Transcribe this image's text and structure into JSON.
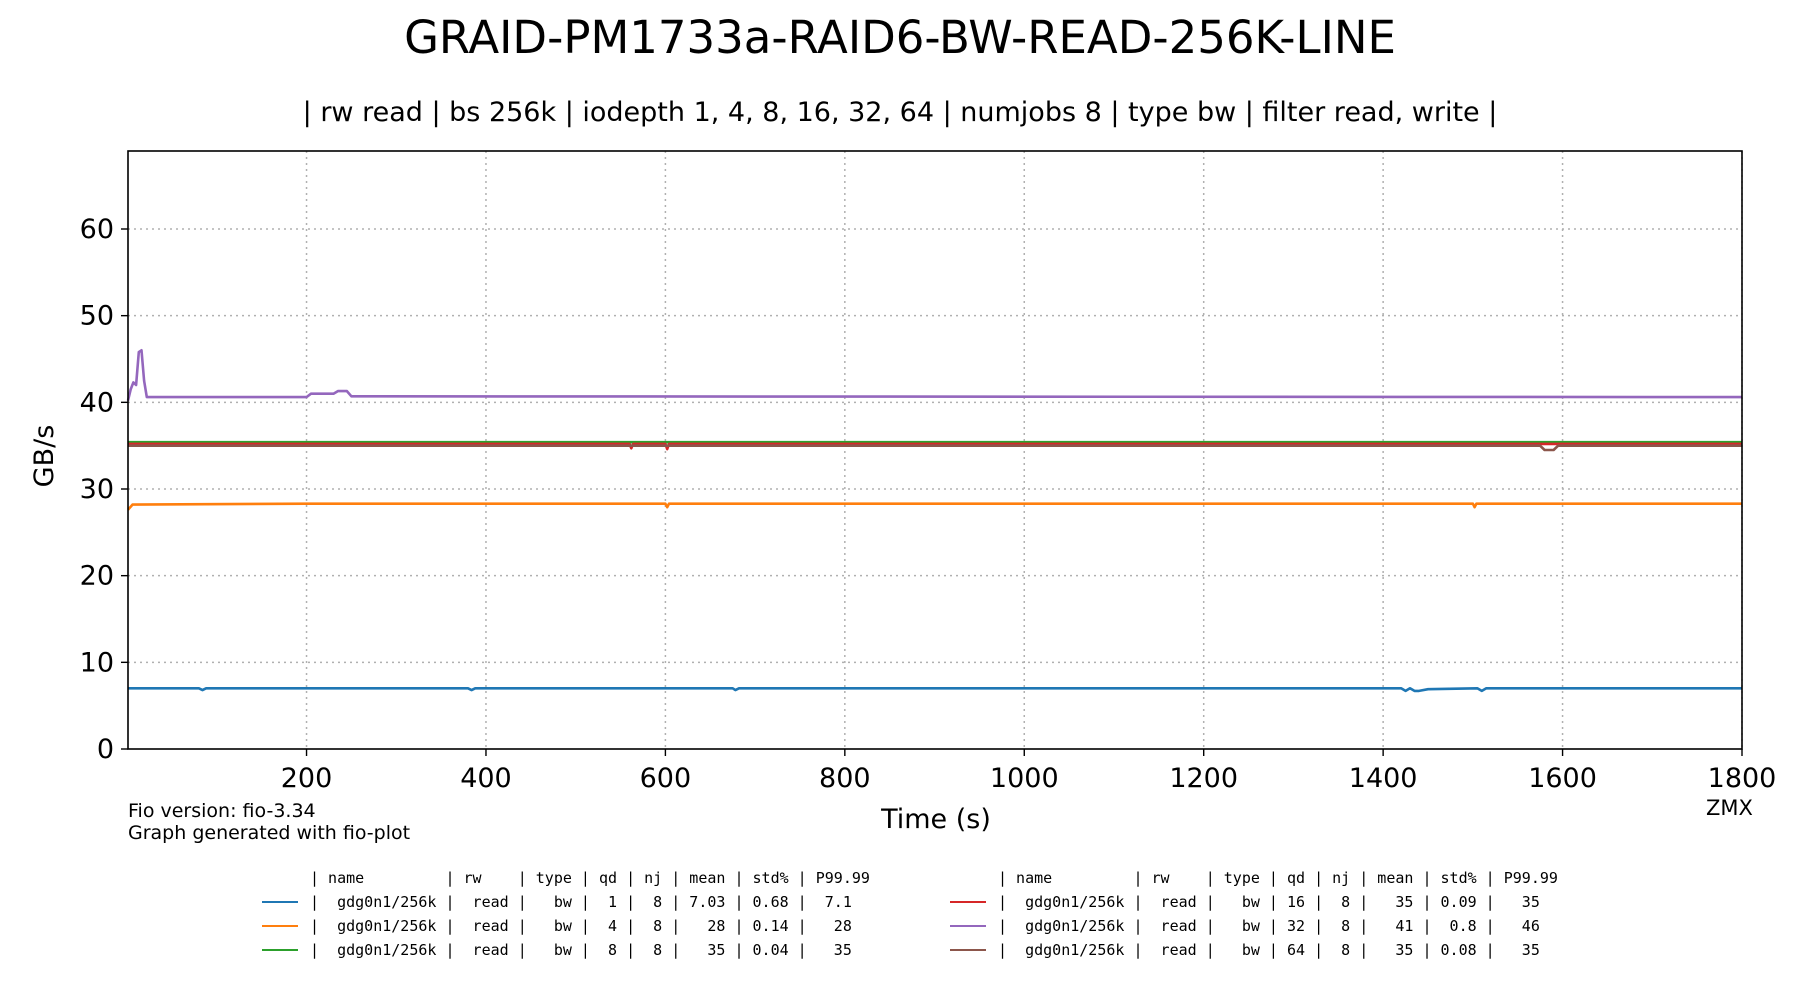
{
  "chart_data": {
    "type": "line",
    "title": "GRAID-PM1733a-RAID6-BW-READ-256K-LINE",
    "subtitle": "| rw read | bs 256k | iodepth 1, 4, 8, 16, 32, 64 | numjobs 8 | type bw | filter read, write |",
    "xlabel": "Time (s)",
    "ylabel": "GB/s",
    "xlim": [
      1,
      1800
    ],
    "ylim": [
      0,
      69
    ],
    "xticks": [
      200,
      400,
      600,
      800,
      1000,
      1200,
      1400,
      1600,
      1800
    ],
    "yticks": [
      0,
      10,
      20,
      30,
      40,
      50,
      60
    ],
    "grid": true,
    "series": [
      {
        "name": "gdg0n1/256k",
        "qd": 1,
        "color": "#1f77b4",
        "base": 7.03,
        "points": [
          [
            1,
            7.0
          ],
          [
            80,
            7.0
          ],
          [
            84,
            6.8
          ],
          [
            88,
            7.0
          ],
          [
            380,
            7.0
          ],
          [
            384,
            6.8
          ],
          [
            388,
            7.0
          ],
          [
            640,
            7.0
          ],
          [
            675,
            7.0
          ],
          [
            678,
            6.8
          ],
          [
            682,
            7.0
          ],
          [
            1420,
            7.0
          ],
          [
            1425,
            6.7
          ],
          [
            1430,
            7.0
          ],
          [
            1435,
            6.7
          ],
          [
            1440,
            6.7
          ],
          [
            1450,
            6.9
          ],
          [
            1505,
            7.0
          ],
          [
            1510,
            6.7
          ],
          [
            1515,
            7.0
          ],
          [
            1800,
            7.0
          ]
        ]
      },
      {
        "name": "gdg0n1/256k",
        "qd": 4,
        "color": "#ff7f0e",
        "base": 28.3,
        "points": [
          [
            1,
            27.6
          ],
          [
            6,
            28.2
          ],
          [
            200,
            28.3
          ],
          [
            600,
            28.3
          ],
          [
            602,
            27.9
          ],
          [
            604,
            28.3
          ],
          [
            1500,
            28.3
          ],
          [
            1502,
            27.9
          ],
          [
            1504,
            28.3
          ],
          [
            1800,
            28.3
          ]
        ]
      },
      {
        "name": "gdg0n1/256k",
        "qd": 8,
        "color": "#2ca02c",
        "base": 35.4,
        "points": [
          [
            1,
            35.4
          ],
          [
            1800,
            35.4
          ]
        ]
      },
      {
        "name": "gdg0n1/256k",
        "qd": 16,
        "color": "#d62728",
        "base": 35.2,
        "points": [
          [
            1,
            35.2
          ],
          [
            560,
            35.2
          ],
          [
            562,
            34.7
          ],
          [
            564,
            35.2
          ],
          [
            600,
            35.2
          ],
          [
            602,
            34.6
          ],
          [
            604,
            35.2
          ],
          [
            1800,
            35.2
          ]
        ]
      },
      {
        "name": "gdg0n1/256k",
        "qd": 32,
        "color": "#9467bd",
        "base": 40.6,
        "points": [
          [
            1,
            40.2
          ],
          [
            4,
            41.5
          ],
          [
            7,
            42.3
          ],
          [
            10,
            42.0
          ],
          [
            13,
            45.8
          ],
          [
            16,
            46.0
          ],
          [
            19,
            42.5
          ],
          [
            22,
            40.6
          ],
          [
            200,
            40.6
          ],
          [
            205,
            41.0
          ],
          [
            230,
            41.0
          ],
          [
            235,
            41.3
          ],
          [
            245,
            41.3
          ],
          [
            250,
            40.7
          ],
          [
            1800,
            40.6
          ]
        ]
      },
      {
        "name": "gdg0n1/256k",
        "qd": 64,
        "color": "#8c564b",
        "base": 35.0,
        "points": [
          [
            1,
            35.0
          ],
          [
            1575,
            35.0
          ],
          [
            1580,
            34.5
          ],
          [
            1590,
            34.5
          ],
          [
            1595,
            35.0
          ],
          [
            1800,
            35.0
          ]
        ]
      }
    ]
  },
  "footer": {
    "fio_version": "Fio version: fio-3.34",
    "generated": "Graph generated with fio-plot",
    "tag": "ZMX"
  },
  "legend": {
    "header": "| name         | rw    | type | qd | nj | mean | std% | P99.99",
    "left": [
      {
        "color": "#1f77b4",
        "text": "|  gdg0n1/256k |  read |   bw |  1 |  8 | 7.03 | 0.68 |  7.1"
      },
      {
        "color": "#ff7f0e",
        "text": "|  gdg0n1/256k |  read |   bw |  4 |  8 |   28 | 0.14 |   28"
      },
      {
        "color": "#2ca02c",
        "text": "|  gdg0n1/256k |  read |   bw |  8 |  8 |   35 | 0.04 |   35"
      }
    ],
    "right": [
      {
        "color": "#d62728",
        "text": "|  gdg0n1/256k |  read |   bw | 16 |  8 |   35 | 0.09 |   35"
      },
      {
        "color": "#9467bd",
        "text": "|  gdg0n1/256k |  read |   bw | 32 |  8 |   41 |  0.8 |   46"
      },
      {
        "color": "#8c564b",
        "text": "|  gdg0n1/256k |  read |   bw | 64 |  8 |   35 | 0.08 |   35"
      }
    ]
  }
}
